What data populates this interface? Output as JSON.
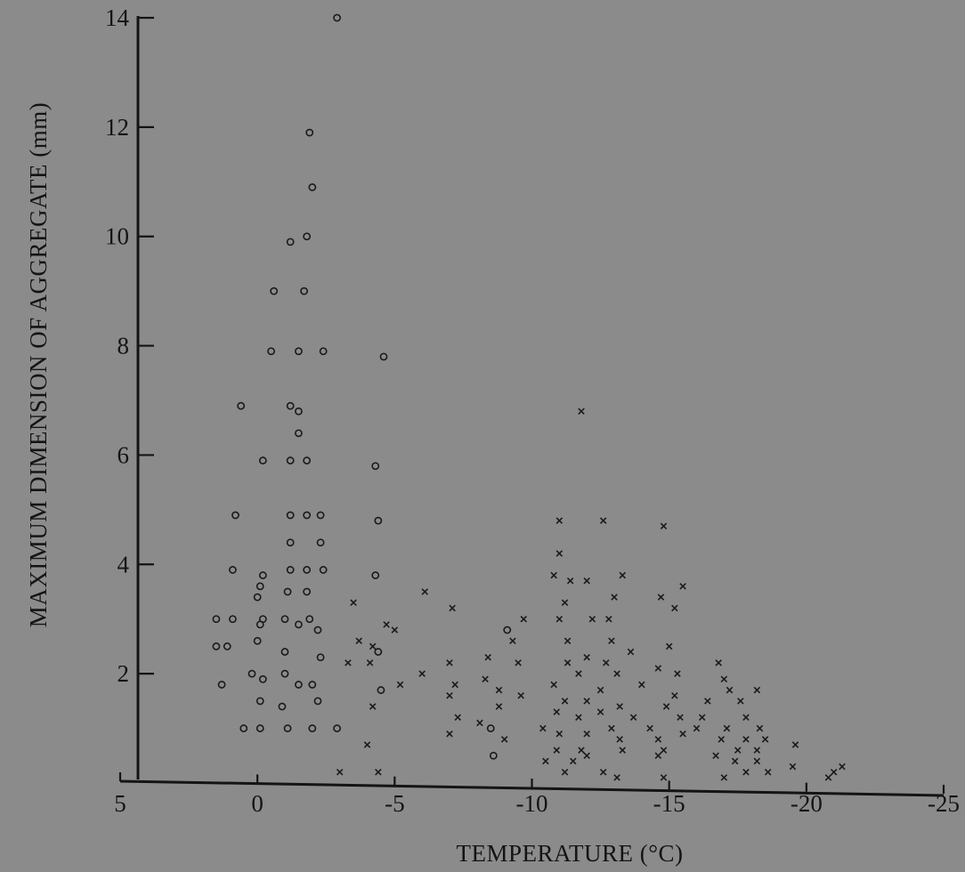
{
  "chart_data": {
    "type": "scatter",
    "title": "",
    "xlabel": "TEMPERATURE (°C)",
    "ylabel": "MAXIMUM DIMENSION OF AGGREGATE (mm)",
    "xlim": [
      5,
      -25
    ],
    "ylim": [
      0,
      14
    ],
    "xticks": [
      5,
      0,
      -5,
      -10,
      -15,
      -20,
      -25
    ],
    "xtick_labels": [
      "5",
      "0",
      "-5",
      "-10",
      "-15",
      "-20",
      "-25"
    ],
    "yticks": [
      2,
      4,
      6,
      8,
      10,
      12,
      14
    ],
    "ytick_labels": [
      "2",
      "4",
      "6",
      "8",
      "10",
      "12",
      "14"
    ],
    "grid": false,
    "legend": "none",
    "series": [
      {
        "marker": "circle",
        "points": [
          [
            -2.9,
            14.0
          ],
          [
            -1.9,
            11.9
          ],
          [
            -2.0,
            10.9
          ],
          [
            -1.8,
            10.0
          ],
          [
            -1.2,
            9.9
          ],
          [
            -0.6,
            9.0
          ],
          [
            -1.7,
            9.0
          ],
          [
            -0.5,
            7.9
          ],
          [
            -1.5,
            7.9
          ],
          [
            -2.4,
            7.9
          ],
          [
            -4.6,
            7.8
          ],
          [
            0.6,
            6.9
          ],
          [
            -1.2,
            6.9
          ],
          [
            -1.5,
            6.8
          ],
          [
            -1.5,
            6.4
          ],
          [
            -0.2,
            5.9
          ],
          [
            -1.2,
            5.9
          ],
          [
            -1.8,
            5.9
          ],
          [
            -4.3,
            5.8
          ],
          [
            0.8,
            4.9
          ],
          [
            -1.2,
            4.9
          ],
          [
            -1.8,
            4.9
          ],
          [
            -2.3,
            4.9
          ],
          [
            -4.4,
            4.8
          ],
          [
            -1.2,
            4.4
          ],
          [
            -2.3,
            4.4
          ],
          [
            0.9,
            3.9
          ],
          [
            -0.2,
            3.8
          ],
          [
            -1.2,
            3.9
          ],
          [
            -1.8,
            3.9
          ],
          [
            -2.4,
            3.9
          ],
          [
            -4.3,
            3.8
          ],
          [
            -0.1,
            3.6
          ],
          [
            0.0,
            3.4
          ],
          [
            -1.1,
            3.5
          ],
          [
            -1.8,
            3.5
          ],
          [
            1.5,
            3.0
          ],
          [
            0.9,
            3.0
          ],
          [
            -0.1,
            2.9
          ],
          [
            -0.2,
            3.0
          ],
          [
            -1.0,
            3.0
          ],
          [
            -1.5,
            2.9
          ],
          [
            -1.9,
            3.0
          ],
          [
            -2.2,
            2.8
          ],
          [
            1.5,
            2.5
          ],
          [
            1.1,
            2.5
          ],
          [
            0.0,
            2.6
          ],
          [
            -1.0,
            2.4
          ],
          [
            -2.3,
            2.3
          ],
          [
            -4.4,
            2.4
          ],
          [
            -9.1,
            2.8
          ],
          [
            1.3,
            1.8
          ],
          [
            0.2,
            2.0
          ],
          [
            -0.2,
            1.9
          ],
          [
            -1.0,
            2.0
          ],
          [
            -1.5,
            1.8
          ],
          [
            -2.0,
            1.8
          ],
          [
            -4.5,
            1.7
          ],
          [
            -0.1,
            1.5
          ],
          [
            -0.9,
            1.4
          ],
          [
            -2.2,
            1.5
          ],
          [
            0.5,
            1.0
          ],
          [
            -0.1,
            1.0
          ],
          [
            -1.1,
            1.0
          ],
          [
            -2.0,
            1.0
          ],
          [
            -2.9,
            1.0
          ],
          [
            -8.5,
            1.0
          ],
          [
            -8.6,
            0.5
          ]
        ]
      },
      {
        "marker": "cross",
        "points": [
          [
            -11.8,
            6.8
          ],
          [
            -11.0,
            4.8
          ],
          [
            -12.6,
            4.8
          ],
          [
            -14.8,
            4.7
          ],
          [
            -11.0,
            4.2
          ],
          [
            -10.8,
            3.8
          ],
          [
            -11.4,
            3.7
          ],
          [
            -12.0,
            3.7
          ],
          [
            -13.3,
            3.8
          ],
          [
            -15.5,
            3.6
          ],
          [
            -6.1,
            3.5
          ],
          [
            -11.2,
            3.3
          ],
          [
            -13.0,
            3.4
          ],
          [
            -14.7,
            3.4
          ],
          [
            -3.5,
            3.3
          ],
          [
            -7.1,
            3.2
          ],
          [
            -9.7,
            3.0
          ],
          [
            -11.0,
            3.0
          ],
          [
            -12.2,
            3.0
          ],
          [
            -12.8,
            3.0
          ],
          [
            -15.2,
            3.2
          ],
          [
            -4.7,
            2.9
          ],
          [
            -5.0,
            2.8
          ],
          [
            -3.7,
            2.6
          ],
          [
            -4.2,
            2.5
          ],
          [
            -11.3,
            2.6
          ],
          [
            -12.9,
            2.6
          ],
          [
            -9.3,
            2.6
          ],
          [
            -15.0,
            2.5
          ],
          [
            -13.6,
            2.4
          ],
          [
            -3.3,
            2.2
          ],
          [
            -4.1,
            2.2
          ],
          [
            -7.0,
            2.2
          ],
          [
            -8.4,
            2.3
          ],
          [
            -9.5,
            2.2
          ],
          [
            -11.3,
            2.2
          ],
          [
            -12.0,
            2.3
          ],
          [
            -12.7,
            2.2
          ],
          [
            -14.6,
            2.1
          ],
          [
            -16.8,
            2.2
          ],
          [
            -6.0,
            2.0
          ],
          [
            -8.3,
            1.9
          ],
          [
            -11.7,
            2.0
          ],
          [
            -13.1,
            2.0
          ],
          [
            -15.3,
            2.0
          ],
          [
            -17.0,
            1.9
          ],
          [
            -5.2,
            1.8
          ],
          [
            -7.2,
            1.8
          ],
          [
            -8.8,
            1.7
          ],
          [
            -10.8,
            1.8
          ],
          [
            -12.5,
            1.7
          ],
          [
            -14.0,
            1.8
          ],
          [
            -15.2,
            1.6
          ],
          [
            -17.2,
            1.7
          ],
          [
            -18.2,
            1.7
          ],
          [
            -7.0,
            1.6
          ],
          [
            -9.6,
            1.6
          ],
          [
            -11.2,
            1.5
          ],
          [
            -12.0,
            1.5
          ],
          [
            -13.2,
            1.4
          ],
          [
            -14.9,
            1.4
          ],
          [
            -16.4,
            1.5
          ],
          [
            -17.6,
            1.5
          ],
          [
            -4.2,
            1.4
          ],
          [
            -8.8,
            1.4
          ],
          [
            -10.9,
            1.3
          ],
          [
            -12.5,
            1.3
          ],
          [
            -7.3,
            1.2
          ],
          [
            -11.7,
            1.2
          ],
          [
            -13.7,
            1.2
          ],
          [
            -15.4,
            1.2
          ],
          [
            -16.2,
            1.2
          ],
          [
            -17.8,
            1.2
          ],
          [
            -8.1,
            1.1
          ],
          [
            -12.9,
            1.0
          ],
          [
            -14.3,
            1.0
          ],
          [
            -17.1,
            1.0
          ],
          [
            -18.3,
            1.0
          ],
          [
            -7.0,
            0.9
          ],
          [
            -9.0,
            0.8
          ],
          [
            -11.0,
            0.9
          ],
          [
            -12.0,
            0.9
          ],
          [
            -13.2,
            0.8
          ],
          [
            -14.6,
            0.8
          ],
          [
            -15.5,
            0.9
          ],
          [
            -16.9,
            0.8
          ],
          [
            -17.8,
            0.8
          ],
          [
            -18.5,
            0.8
          ],
          [
            -4.0,
            0.7
          ],
          [
            -10.9,
            0.6
          ],
          [
            -11.8,
            0.6
          ],
          [
            -13.3,
            0.6
          ],
          [
            -14.8,
            0.6
          ],
          [
            -17.5,
            0.6
          ],
          [
            -18.2,
            0.6
          ],
          [
            -19.6,
            0.7
          ],
          [
            -10.5,
            0.4
          ],
          [
            -11.5,
            0.4
          ],
          [
            -12.0,
            0.5
          ],
          [
            -14.6,
            0.5
          ],
          [
            -16.7,
            0.5
          ],
          [
            -17.4,
            0.4
          ],
          [
            -18.2,
            0.4
          ],
          [
            -19.5,
            0.3
          ],
          [
            -3.0,
            0.2
          ],
          [
            -4.4,
            0.2
          ],
          [
            -11.2,
            0.2
          ],
          [
            -12.6,
            0.2
          ],
          [
            -13.1,
            0.1
          ],
          [
            -14.8,
            0.1
          ],
          [
            -17.0,
            0.1
          ],
          [
            -17.8,
            0.2
          ],
          [
            -18.6,
            0.2
          ],
          [
            -21.0,
            0.2
          ],
          [
            -21.3,
            0.3
          ],
          [
            -20.8,
            0.1
          ],
          [
            -16.0,
            1.0
          ],
          [
            -10.4,
            1.0
          ]
        ]
      }
    ]
  }
}
